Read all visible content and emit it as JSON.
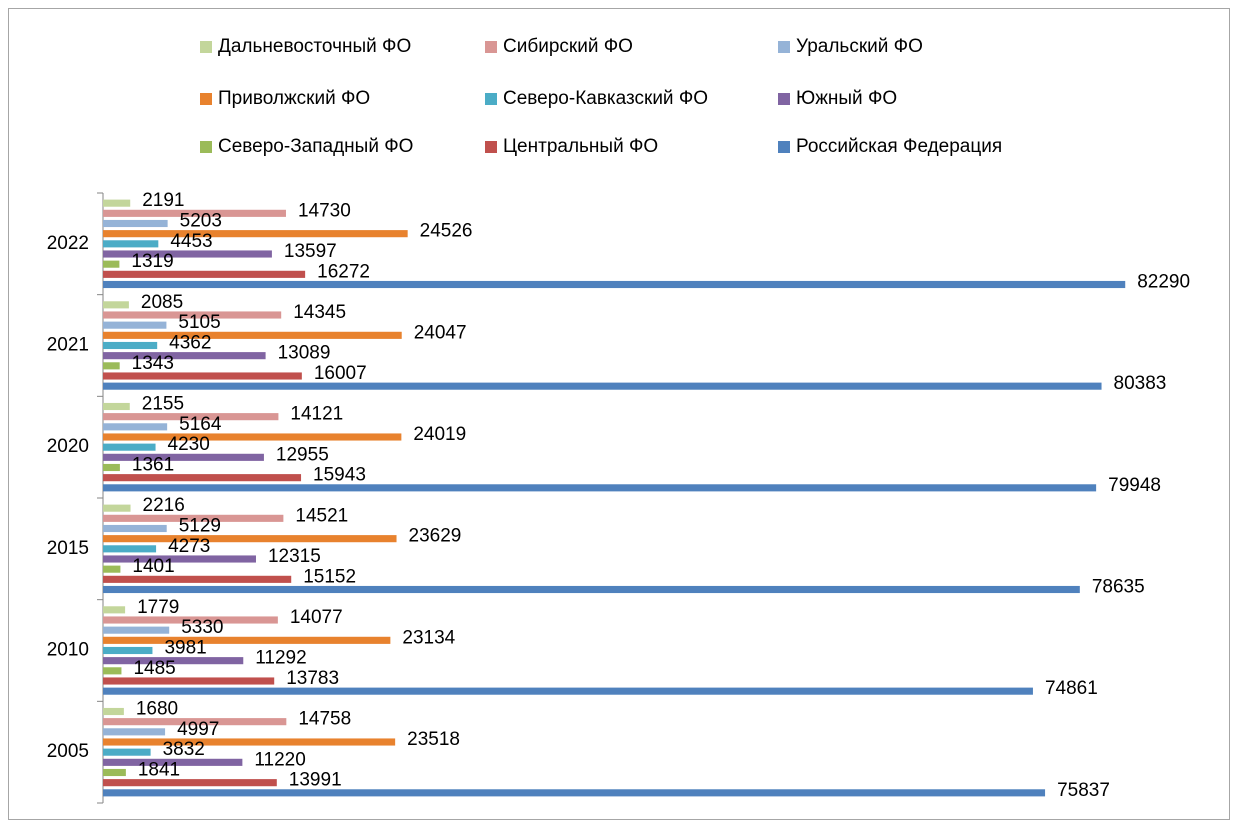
{
  "chart_data": {
    "type": "bar",
    "orientation": "horizontal",
    "legend": "top",
    "categories": [
      "2005",
      "2010",
      "2015",
      "2020",
      "2021",
      "2022"
    ],
    "xlim": [
      0,
      90000
    ],
    "series": [
      {
        "name": "Дальневосточный ФО",
        "color": "#c3d69b",
        "values": [
          1680,
          1779,
          2216,
          2155,
          2085,
          2191
        ]
      },
      {
        "name": "Сибирский ФО",
        "color": "#d99694",
        "values": [
          14758,
          14077,
          14521,
          14121,
          14345,
          14730
        ]
      },
      {
        "name": "Уральский ФО",
        "color": "#95b3d7",
        "values": [
          4997,
          5330,
          5129,
          5164,
          5105,
          5203
        ]
      },
      {
        "name": "Приволжский ФО",
        "color": "#e8822e",
        "values": [
          23518,
          23134,
          23629,
          24019,
          24047,
          24526
        ]
      },
      {
        "name": "Северо-Кавказский ФО",
        "color": "#4bacc6",
        "values": [
          3832,
          3981,
          4273,
          4230,
          4362,
          4453
        ]
      },
      {
        "name": "Южный ФО",
        "color": "#8064a2",
        "values": [
          11220,
          11292,
          12315,
          12955,
          13089,
          13597
        ]
      },
      {
        "name": "Северо-Западный ФО",
        "color": "#9bbb59",
        "values": [
          1841,
          1485,
          1401,
          1361,
          1343,
          1319
        ]
      },
      {
        "name": "Центральный ФО",
        "color": "#c0504d",
        "values": [
          13991,
          13783,
          15152,
          15943,
          16007,
          16272
        ]
      },
      {
        "name": "Российская Федерация",
        "color": "#4f81bd",
        "values": [
          75837,
          74861,
          78635,
          79948,
          80383,
          82290
        ]
      }
    ]
  }
}
